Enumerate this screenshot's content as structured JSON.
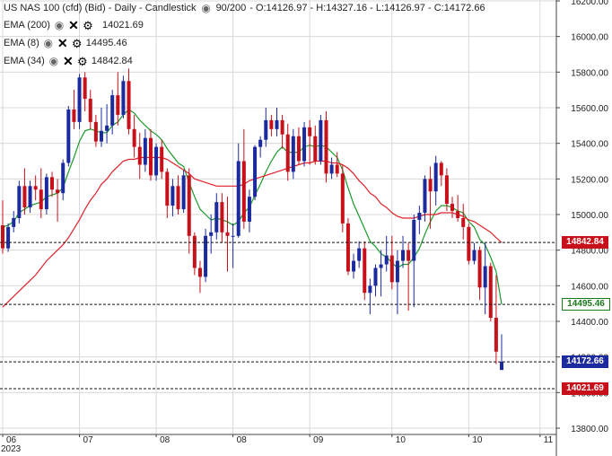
{
  "header": {
    "instrument": "US NAS 100 (cfd) (Bid) - Daily - Candlestick",
    "bars": "90/200",
    "ohlc": "- O:14126.97 - H:14327.16 - L:14126.97 - C:14172.66"
  },
  "legend": [
    {
      "label": "EMA (200)",
      "value": "14021.69"
    },
    {
      "label": "EMA (8)",
      "value": "14495.46"
    },
    {
      "label": "EMA (34)",
      "value": "14842.84"
    }
  ],
  "icons": {
    "eye": "eye-icon",
    "close": "close-icon",
    "settings": "gear-icon"
  },
  "price_tags": [
    {
      "label": "14842.84",
      "price": 14842.84,
      "color": "#c8101a"
    },
    {
      "label": "14495.46",
      "price": 14495.46,
      "color": "#ffffff",
      "text_color": "#1a7a1a"
    },
    {
      "label": "14172.66",
      "price": 14172.66,
      "color": "#1c2a9f"
    },
    {
      "label": "14021.69",
      "price": 14021.69,
      "color": "#c8101a"
    }
  ],
  "colors": {
    "up": "#1c2a9f",
    "down": "#c8101a",
    "ema8": "#1a9a2a",
    "ema34": "#e0202a",
    "grid": "#d8d8d8"
  },
  "chart_data": {
    "type": "candlestick",
    "ylim": [
      13800,
      16200
    ],
    "y_ticks": [
      "13800.00",
      "14000.00",
      "14200.00",
      "14400.00",
      "14600.00",
      "14800.00",
      "15000.00",
      "15200.00",
      "15400.00",
      "15600.00",
      "15800.00",
      "16000.00",
      "16200.00"
    ],
    "y_tick_values": [
      13800,
      14000,
      14200,
      14400,
      14600,
      14800,
      15000,
      15200,
      15400,
      15600,
      15800,
      16000,
      16200
    ],
    "x_ticks": [
      "06",
      "07",
      "08",
      "08",
      "09",
      "10",
      "10",
      "11"
    ],
    "x_tick_index": [
      0,
      14,
      28,
      42,
      56,
      71,
      85,
      98
    ],
    "year_label": "2023",
    "candles": [
      [
        14940,
        15080,
        14780,
        14810
      ],
      [
        14810,
        14950,
        14790,
        14930
      ],
      [
        14930,
        15020,
        14900,
        14980
      ],
      [
        14980,
        15190,
        14950,
        15160
      ],
      [
        15160,
        15260,
        15000,
        15040
      ],
      [
        15040,
        15190,
        15010,
        15160
      ],
      [
        15160,
        15220,
        15080,
        15140
      ],
      [
        15140,
        15260,
        14980,
        15030
      ],
      [
        15030,
        15230,
        15000,
        15210
      ],
      [
        15210,
        15240,
        15100,
        15140
      ],
      [
        15140,
        15200,
        14960,
        15120
      ],
      [
        15120,
        15310,
        15080,
        15290
      ],
      [
        15290,
        15610,
        15270,
        15590
      ],
      [
        15590,
        15700,
        15480,
        15520
      ],
      [
        15520,
        15790,
        15480,
        15770
      ],
      [
        15770,
        15800,
        15580,
        15650
      ],
      [
        15650,
        15700,
        15480,
        15520
      ],
      [
        15520,
        15560,
        15380,
        15410
      ],
      [
        15410,
        15600,
        15380,
        15470
      ],
      [
        15470,
        15620,
        15400,
        15500
      ],
      [
        15500,
        15700,
        15450,
        15670
      ],
      [
        15670,
        15800,
        15500,
        15560
      ],
      [
        15560,
        15780,
        15540,
        15750
      ],
      [
        15750,
        15820,
        15450,
        15480
      ],
      [
        15480,
        15560,
        15320,
        15380
      ],
      [
        15380,
        15460,
        15200,
        15280
      ],
      [
        15280,
        15480,
        15240,
        15430
      ],
      [
        15430,
        15480,
        15190,
        15220
      ],
      [
        15220,
        15400,
        15190,
        15380
      ],
      [
        15380,
        15420,
        15200,
        15240
      ],
      [
        15240,
        15260,
        14980,
        15050
      ],
      [
        15050,
        15200,
        14990,
        15160
      ],
      [
        15160,
        15220,
        15000,
        15030
      ],
      [
        15030,
        15250,
        15010,
        15220
      ],
      [
        15220,
        15260,
        14780,
        14880
      ],
      [
        14880,
        14900,
        14660,
        14700
      ],
      [
        14700,
        14740,
        14560,
        14650
      ],
      [
        14650,
        14920,
        14620,
        14880
      ],
      [
        14880,
        15000,
        14780,
        14900
      ],
      [
        14900,
        15120,
        14860,
        15070
      ],
      [
        15070,
        15120,
        14840,
        14900
      ],
      [
        14900,
        15100,
        14680,
        14880
      ],
      [
        14880,
        14950,
        14700,
        14880
      ],
      [
        14880,
        15400,
        14870,
        15300
      ],
      [
        15300,
        15480,
        14920,
        14960
      ],
      [
        14960,
        15140,
        14900,
        15100
      ],
      [
        15100,
        15390,
        15080,
        15380
      ],
      [
        15380,
        15440,
        15320,
        15420
      ],
      [
        15420,
        15600,
        15380,
        15530
      ],
      [
        15530,
        15560,
        15440,
        15480
      ],
      [
        15480,
        15600,
        15440,
        15530
      ],
      [
        15530,
        15560,
        15370,
        15450
      ],
      [
        15450,
        15510,
        15190,
        15240
      ],
      [
        15240,
        15480,
        15200,
        15440
      ],
      [
        15440,
        15490,
        15280,
        15300
      ],
      [
        15300,
        15520,
        15270,
        15490
      ],
      [
        15490,
        15530,
        15280,
        15440
      ],
      [
        15440,
        15500,
        15280,
        15300
      ],
      [
        15300,
        15560,
        15280,
        15530
      ],
      [
        15530,
        15580,
        15180,
        15230
      ],
      [
        15230,
        15320,
        15200,
        15280
      ],
      [
        15280,
        15350,
        15210,
        15230
      ],
      [
        15230,
        15280,
        14900,
        14950
      ],
      [
        14950,
        14980,
        14660,
        14680
      ],
      [
        14680,
        14780,
        14640,
        14740
      ],
      [
        14740,
        14850,
        14700,
        14810
      ],
      [
        14810,
        14850,
        14520,
        14560
      ],
      [
        14560,
        14640,
        14440,
        14600
      ],
      [
        14600,
        14720,
        14540,
        14700
      ],
      [
        14700,
        14800,
        14540,
        14720
      ],
      [
        14720,
        14880,
        14680,
        14770
      ],
      [
        14770,
        14880,
        14580,
        14620
      ],
      [
        14620,
        14800,
        14440,
        14740
      ],
      [
        14740,
        14880,
        14700,
        14800
      ],
      [
        14800,
        14840,
        14460,
        14740
      ],
      [
        14740,
        15000,
        14480,
        14970
      ],
      [
        14970,
        15050,
        14890,
        15010
      ],
      [
        15010,
        15220,
        14960,
        15200
      ],
      [
        15200,
        15270,
        14920,
        15130
      ],
      [
        15130,
        15330,
        15050,
        15290
      ],
      [
        15290,
        15300,
        15160,
        15220
      ],
      [
        15220,
        15260,
        15020,
        15060
      ],
      [
        15060,
        15100,
        14980,
        15020
      ],
      [
        15020,
        15110,
        14960,
        14980
      ],
      [
        14980,
        15060,
        14860,
        14930
      ],
      [
        14930,
        14950,
        14720,
        14740
      ],
      [
        14740,
        14840,
        14720,
        14800
      ],
      [
        14800,
        14820,
        14520,
        14590
      ],
      [
        14590,
        14840,
        14440,
        14710
      ],
      [
        14710,
        14730,
        14400,
        14420
      ],
      [
        14420,
        14660,
        14160,
        14230
      ],
      [
        14126.97,
        14327.16,
        14126.97,
        14172.66
      ]
    ],
    "series": [
      {
        "name": "EMA (8)",
        "color": "#1a9a2a",
        "start": 0,
        "values": [
          14930,
          14940,
          14960,
          15010,
          15030,
          15050,
          15060,
          15070,
          15100,
          15110,
          15120,
          15150,
          15240,
          15320,
          15410,
          15470,
          15480,
          15470,
          15460,
          15460,
          15500,
          15520,
          15560,
          15590,
          15570,
          15530,
          15500,
          15470,
          15450,
          15420,
          15370,
          15330,
          15290,
          15270,
          15180,
          15100,
          15030,
          15000,
          14970,
          14980,
          14970,
          14960,
          14940,
          14960,
          15010,
          15040,
          15110,
          15170,
          15240,
          15300,
          15350,
          15380,
          15350,
          15350,
          15350,
          15380,
          15390,
          15380,
          15390,
          15380,
          15350,
          15320,
          15250,
          15150,
          15060,
          14990,
          14920,
          14850,
          14820,
          14780,
          14760,
          14730,
          14700,
          14720,
          14720,
          14760,
          14810,
          14890,
          14960,
          15020,
          15050,
          15050,
          15040,
          15020,
          15010,
          14960,
          14930,
          14860,
          14830,
          14760,
          14680,
          14495.46
        ]
      },
      {
        "name": "EMA (34)",
        "color": "#e0202a",
        "start": 0,
        "values": [
          14480,
          14510,
          14540,
          14570,
          14600,
          14630,
          14660,
          14700,
          14740,
          14770,
          14800,
          14830,
          14870,
          14920,
          14970,
          15030,
          15080,
          15120,
          15170,
          15200,
          15240,
          15270,
          15300,
          15310,
          15310,
          15320,
          15320,
          15320,
          15320,
          15320,
          15310,
          15290,
          15270,
          15250,
          15230,
          15200,
          15190,
          15180,
          15170,
          15160,
          15160,
          15160,
          15160,
          15160,
          15170,
          15190,
          15200,
          15210,
          15220,
          15230,
          15240,
          15250,
          15260,
          15270,
          15280,
          15290,
          15290,
          15300,
          15300,
          15300,
          15290,
          15290,
          15280,
          15260,
          15230,
          15190,
          15160,
          15120,
          15100,
          15060,
          15040,
          15010,
          14990,
          14980,
          14980,
          14980,
          14990,
          15000,
          15000,
          15000,
          15010,
          15010,
          15010,
          15000,
          14990,
          14970,
          14960,
          14940,
          14920,
          14900,
          14870,
          14842.84
        ]
      },
      {
        "name": "EMA (200)",
        "value": 14021.69
      }
    ]
  }
}
